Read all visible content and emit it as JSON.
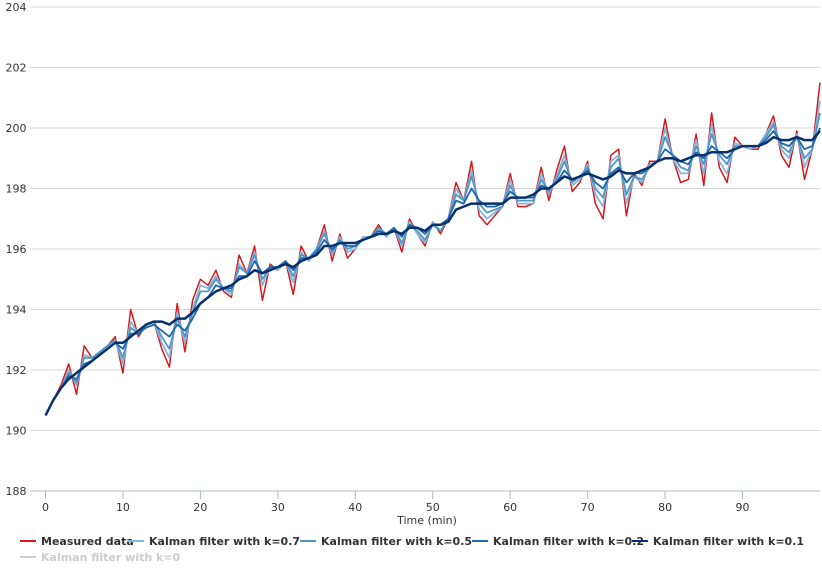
{
  "chart_data": {
    "type": "line",
    "title": "",
    "xlabel": "Time (min)",
    "ylabel": "",
    "xlim": [
      -2,
      100
    ],
    "ylim": [
      188,
      204
    ],
    "xticks": [
      0,
      10,
      20,
      30,
      40,
      50,
      60,
      70,
      80,
      90
    ],
    "yticks": [
      188,
      190,
      192,
      194,
      196,
      198,
      200,
      202,
      204
    ],
    "grid": "horizontal",
    "legend_position": "bottom-left",
    "series": [
      {
        "name": "Measured data",
        "color": "#d7191c",
        "values": [
          190.5,
          191.0,
          191.5,
          192.2,
          191.2,
          192.8,
          192.4,
          192.6,
          192.8,
          193.1,
          191.9,
          194.0,
          193.1,
          193.5,
          193.6,
          192.7,
          192.1,
          194.2,
          192.6,
          194.3,
          195.0,
          194.8,
          195.3,
          194.6,
          194.4,
          195.8,
          195.2,
          196.1,
          194.3,
          195.5,
          195.3,
          195.6,
          194.5,
          196.1,
          195.6,
          196.0,
          196.8,
          195.6,
          196.5,
          195.7,
          196.0,
          196.4,
          196.4,
          196.8,
          196.4,
          196.7,
          195.9,
          197.0,
          196.5,
          196.1,
          196.9,
          196.5,
          197.0,
          198.2,
          197.6,
          198.9,
          197.1,
          196.8,
          197.1,
          197.4,
          198.5,
          197.4,
          197.4,
          197.5,
          198.7,
          197.6,
          198.6,
          199.4,
          197.9,
          198.2,
          198.9,
          197.5,
          197.0,
          199.1,
          199.3,
          197.1,
          198.5,
          198.1,
          198.9,
          198.9,
          200.3,
          199.0,
          198.2,
          198.3,
          199.8,
          198.1,
          200.5,
          198.7,
          198.2,
          199.7,
          199.4,
          199.3,
          199.3,
          199.8,
          200.4,
          199.1,
          198.7,
          199.9,
          198.3,
          199.3,
          201.5
        ]
      },
      {
        "name": "Kalman filter with k=0.7",
        "color": "#8ab4d8",
        "values": [
          190.5,
          191.0,
          191.4,
          192.0,
          191.5,
          192.5,
          192.4,
          192.6,
          192.8,
          193.0,
          192.2,
          193.6,
          193.2,
          193.5,
          193.6,
          192.9,
          192.4,
          193.9,
          192.9,
          194.0,
          194.8,
          194.7,
          195.1,
          194.7,
          194.5,
          195.5,
          195.2,
          195.9,
          194.8,
          195.4,
          195.3,
          195.6,
          194.9,
          195.9,
          195.6,
          196.0,
          196.6,
          195.8,
          196.4,
          195.9,
          196.0,
          196.4,
          196.4,
          196.7,
          196.4,
          196.7,
          196.1,
          196.9,
          196.5,
          196.2,
          196.9,
          196.6,
          197.0,
          198.0,
          197.6,
          198.6,
          197.3,
          197.0,
          197.2,
          197.4,
          198.3,
          197.5,
          197.5,
          197.5,
          198.5,
          197.8,
          198.4,
          199.1,
          198.1,
          198.3,
          198.8,
          197.8,
          197.4,
          198.9,
          199.1,
          197.5,
          198.4,
          198.2,
          198.8,
          198.9,
          200.0,
          199.0,
          198.5,
          198.5,
          199.6,
          198.5,
          200.1,
          198.9,
          198.5,
          199.5,
          199.4,
          199.3,
          199.4,
          199.8,
          200.2,
          199.3,
          199.0,
          199.8,
          198.7,
          199.3,
          200.9
        ]
      },
      {
        "name": "Kalman filter with k=0.5",
        "color": "#4f97c8",
        "values": [
          190.5,
          191.0,
          191.4,
          191.9,
          191.6,
          192.4,
          192.4,
          192.6,
          192.8,
          193.0,
          192.4,
          193.4,
          193.2,
          193.5,
          193.6,
          193.1,
          192.7,
          193.7,
          193.1,
          193.9,
          194.6,
          194.6,
          195.0,
          194.7,
          194.6,
          195.4,
          195.2,
          195.8,
          195.0,
          195.4,
          195.4,
          195.6,
          195.1,
          195.8,
          195.7,
          196.0,
          196.5,
          195.9,
          196.3,
          196.0,
          196.1,
          196.3,
          196.4,
          196.7,
          196.5,
          196.7,
          196.2,
          196.8,
          196.6,
          196.3,
          196.8,
          196.6,
          197.0,
          197.8,
          197.6,
          198.4,
          197.5,
          197.2,
          197.3,
          197.4,
          198.1,
          197.6,
          197.6,
          197.6,
          198.3,
          197.9,
          198.3,
          198.9,
          198.2,
          198.4,
          198.7,
          198.0,
          197.7,
          198.7,
          199.0,
          197.8,
          198.4,
          198.3,
          198.7,
          198.9,
          199.7,
          199.1,
          198.7,
          198.6,
          199.4,
          198.8,
          199.8,
          199.1,
          198.8,
          199.4,
          199.4,
          199.4,
          199.4,
          199.7,
          200.1,
          199.4,
          199.2,
          199.7,
          199.0,
          199.3,
          200.5
        ]
      },
      {
        "name": "Kalman filter with k=0.2",
        "color": "#2166ac",
        "values": [
          190.5,
          191.0,
          191.4,
          191.8,
          191.7,
          192.2,
          192.3,
          192.5,
          192.7,
          192.9,
          192.7,
          193.2,
          193.2,
          193.4,
          193.5,
          193.3,
          193.1,
          193.5,
          193.3,
          193.7,
          194.2,
          194.4,
          194.8,
          194.7,
          194.7,
          195.1,
          195.1,
          195.6,
          195.2,
          195.4,
          195.4,
          195.6,
          195.3,
          195.7,
          195.7,
          195.9,
          196.3,
          196.0,
          196.2,
          196.1,
          196.1,
          196.3,
          196.4,
          196.6,
          196.5,
          196.7,
          196.4,
          196.8,
          196.7,
          196.5,
          196.8,
          196.8,
          197.0,
          197.6,
          197.5,
          198.0,
          197.6,
          197.4,
          197.4,
          197.5,
          197.9,
          197.7,
          197.7,
          197.7,
          198.1,
          198.0,
          198.2,
          198.6,
          198.3,
          198.4,
          198.6,
          198.2,
          198.0,
          198.5,
          198.7,
          198.2,
          198.5,
          198.5,
          198.7,
          198.9,
          199.3,
          199.1,
          198.9,
          198.8,
          199.2,
          199.0,
          199.4,
          199.2,
          199.0,
          199.3,
          199.4,
          199.4,
          199.4,
          199.6,
          199.9,
          199.5,
          199.4,
          199.7,
          199.3,
          199.4,
          200.0
        ]
      },
      {
        "name": "Kalman filter with k=0.1",
        "color": "#08306b",
        "values": [
          190.5,
          191.0,
          191.4,
          191.7,
          191.9,
          192.1,
          192.3,
          192.5,
          192.7,
          192.9,
          192.9,
          193.1,
          193.3,
          193.5,
          193.6,
          193.6,
          193.5,
          193.7,
          193.7,
          193.9,
          194.2,
          194.4,
          194.6,
          194.7,
          194.8,
          195.0,
          195.1,
          195.3,
          195.2,
          195.3,
          195.4,
          195.5,
          195.4,
          195.6,
          195.7,
          195.8,
          196.1,
          196.1,
          196.2,
          196.2,
          196.2,
          196.3,
          196.4,
          196.5,
          196.5,
          196.6,
          196.5,
          196.7,
          196.7,
          196.6,
          196.8,
          196.8,
          196.9,
          197.3,
          197.4,
          197.5,
          197.5,
          197.5,
          197.5,
          197.5,
          197.7,
          197.7,
          197.7,
          197.8,
          198.0,
          198.0,
          198.2,
          198.4,
          198.3,
          198.4,
          198.5,
          198.4,
          198.3,
          198.4,
          198.6,
          198.5,
          198.5,
          198.6,
          198.7,
          198.9,
          199.0,
          199.0,
          198.9,
          199.0,
          199.1,
          199.1,
          199.2,
          199.2,
          199.2,
          199.3,
          199.4,
          199.4,
          199.4,
          199.5,
          199.7,
          199.6,
          199.6,
          199.7,
          199.6,
          199.6,
          199.9
        ]
      },
      {
        "name": "Kalman filter with k=0",
        "color": "#cccccc",
        "visible": false,
        "values": []
      }
    ]
  }
}
